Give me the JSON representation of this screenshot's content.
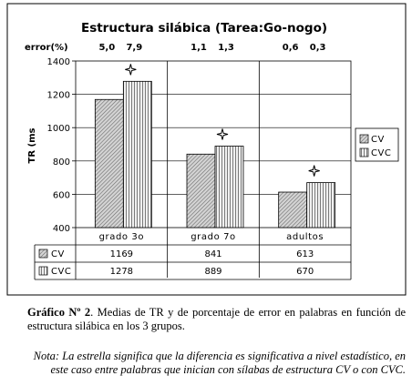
{
  "chart_data": {
    "type": "bar",
    "title": "Estructura silábica (Tarea:Go-nogo)",
    "ylabel": "TR (ms",
    "xlabel": "",
    "ylim": [
      400,
      1400
    ],
    "yticks": [
      "400",
      "600",
      "800",
      "1000",
      "1200",
      "1400"
    ],
    "categories": [
      "grado 3o",
      "grado 7o",
      "adultos"
    ],
    "series": [
      {
        "name": "CV",
        "values": [
          1169,
          841,
          613
        ],
        "labels": [
          "1169",
          "841",
          "613"
        ],
        "color": "#c8c8c8",
        "pattern": "diagonal"
      },
      {
        "name": "CVC",
        "values": [
          1278,
          889,
          670
        ],
        "labels": [
          "1278",
          "889",
          "670"
        ],
        "color": "#e4e4e4",
        "pattern": "vertical"
      }
    ],
    "error_label": "error(%)",
    "error_values": [
      [
        "5,0",
        "7,9"
      ],
      [
        "1,1",
        "1,3"
      ],
      [
        "0,6",
        "0,3"
      ]
    ],
    "significance_marker": "star-icon",
    "significant": [
      true,
      true,
      true
    ],
    "grid": true,
    "legend": "right"
  },
  "caption": {
    "bold": "Gráfico Nº 2",
    "text": ". Medias de TR y de porcentaje de error en palabras en función de estructura silábica en los 3 grupos."
  },
  "note": "Nota: La estrella significa que la diferencia es significativa a nivel estadístico, en este caso entre palabras que inician con sílabas de estructura CV o con CVC."
}
